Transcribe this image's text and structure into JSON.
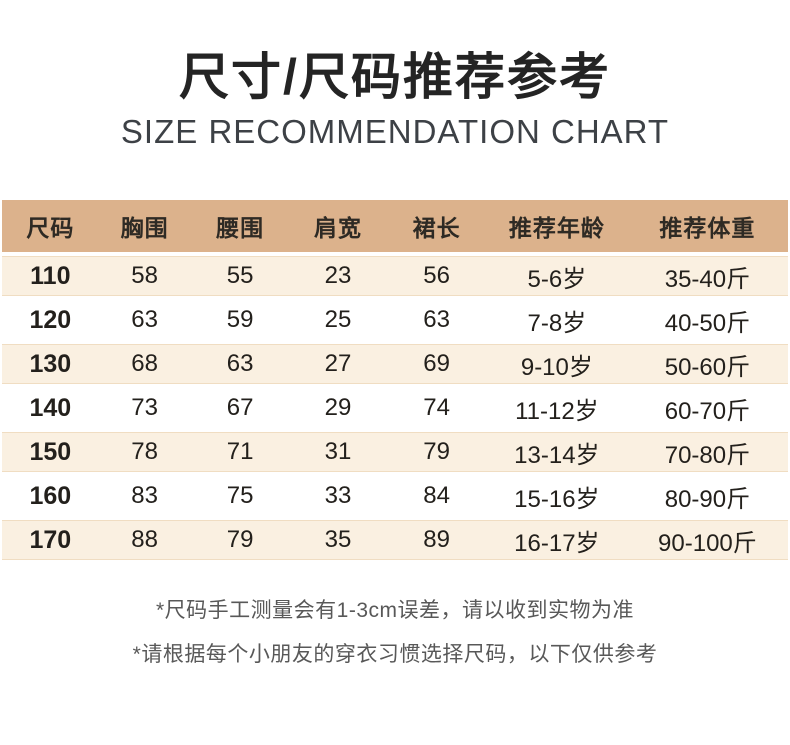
{
  "page": {
    "title_zh": "尺寸/尺码推荐参考",
    "title_en": "SIZE RECOMMENDATION CHART"
  },
  "chart_data": {
    "type": "table",
    "title": "尺寸/尺码推荐参考",
    "subtitle": "SIZE RECOMMENDATION CHART",
    "columns": [
      "尺码",
      "胸围",
      "腰围",
      "肩宽",
      "裙长",
      "推荐年龄",
      "推荐体重"
    ],
    "rows": [
      [
        "110",
        "58",
        "55",
        "23",
        "56",
        "5-6岁",
        "35-40斤"
      ],
      [
        "120",
        "63",
        "59",
        "25",
        "63",
        "7-8岁",
        "40-50斤"
      ],
      [
        "130",
        "68",
        "63",
        "27",
        "69",
        "9-10岁",
        "50-60斤"
      ],
      [
        "140",
        "73",
        "67",
        "29",
        "74",
        "11-12岁",
        "60-70斤"
      ],
      [
        "150",
        "78",
        "71",
        "31",
        "79",
        "13-14岁",
        "70-80斤"
      ],
      [
        "160",
        "83",
        "75",
        "33",
        "84",
        "15-16岁",
        "80-90斤"
      ],
      [
        "170",
        "88",
        "79",
        "35",
        "89",
        "16-17岁",
        "90-100斤"
      ]
    ],
    "layout_hints": {
      "alternating_row_shading": "rows 110/130/150/170 beige, 120/140/160 white",
      "header_background": "tan"
    }
  },
  "notes": [
    "*尺码手工测量会有1-3cm误差，请以收到实物为准",
    "*请根据每个小朋友的穿衣习惯选择尺码，以下仅供参考"
  ],
  "colors": {
    "header_bg": "#dcb28c",
    "row_alt_bg": "#faf0e1",
    "row_bg": "#ffffff",
    "row_edge": "#f0ddc2",
    "title_color": "#242424",
    "subtitle_color": "#3d4146",
    "text_dark": "#23201c",
    "note_color": "#585858"
  }
}
